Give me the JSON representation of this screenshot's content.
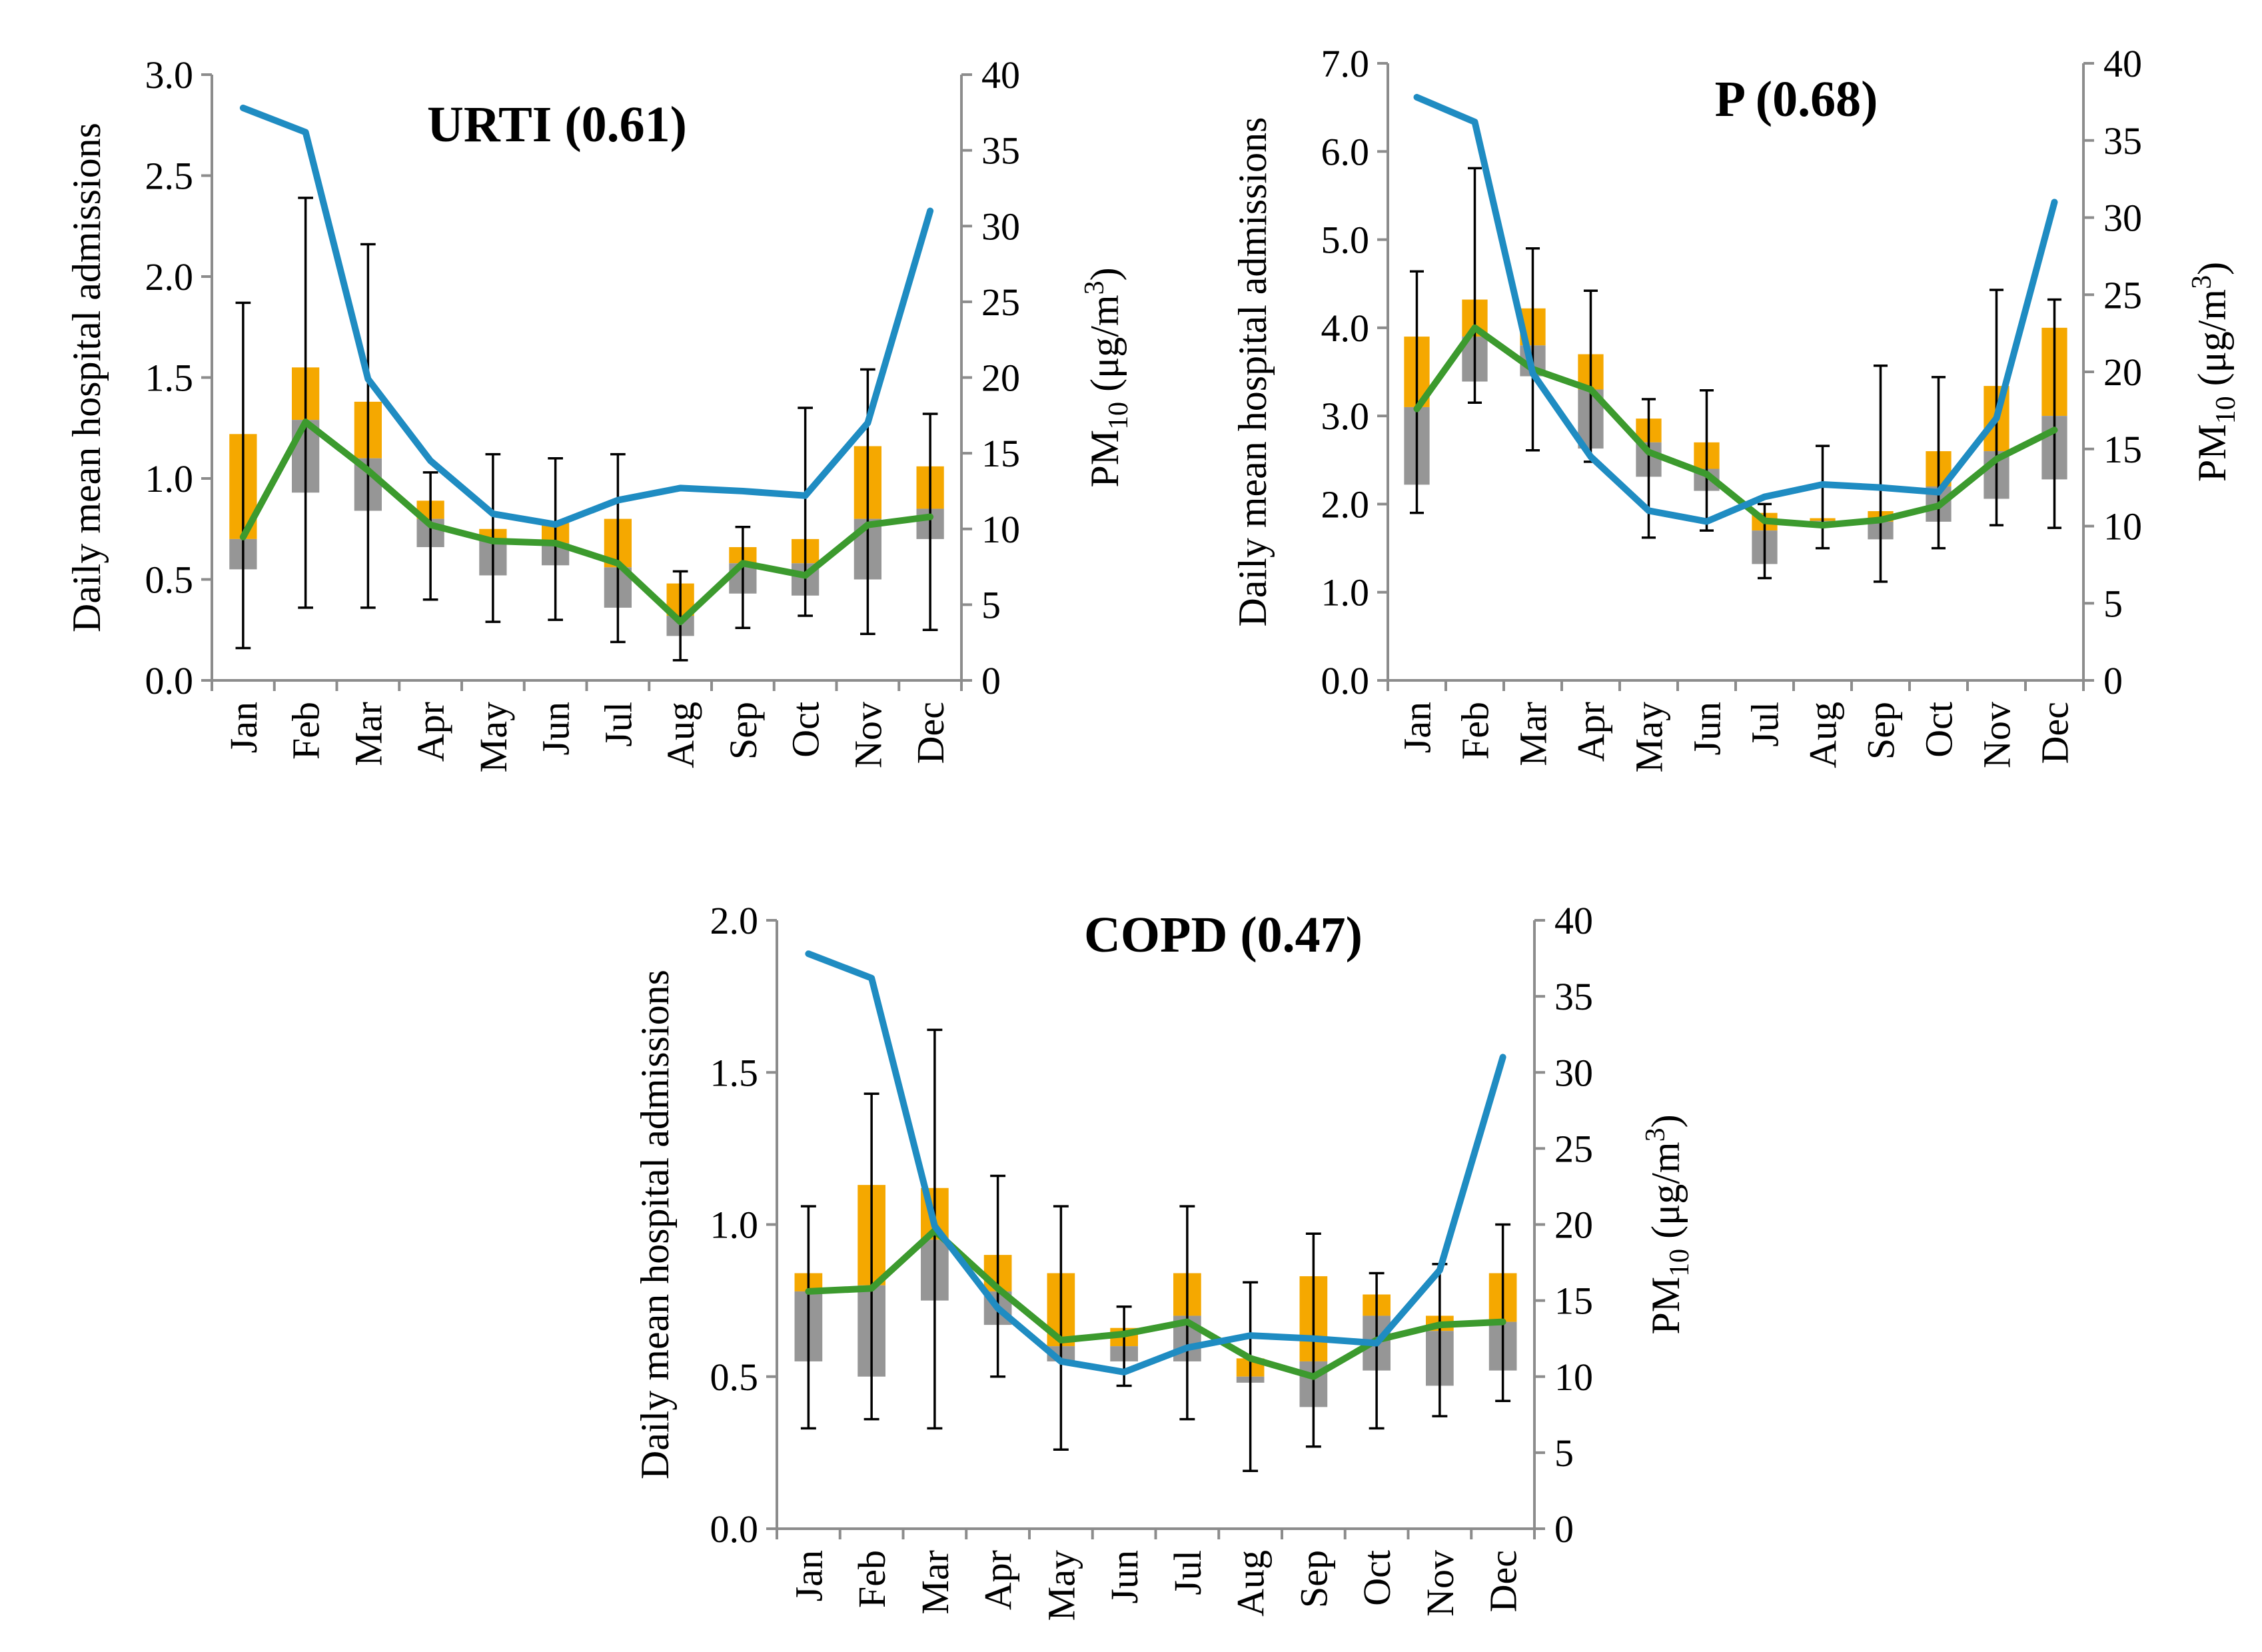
{
  "chart_data": [
    {
      "type": "bar",
      "title": "URTI (0.61)",
      "categories": [
        "Jan",
        "Feb",
        "Mar",
        "Apr",
        "May",
        "Jun",
        "Jul",
        "Aug",
        "Sep",
        "Oct",
        "Nov",
        "Dec"
      ],
      "ylabel": "Daily mean hospital admissions",
      "y2label": "PM",
      "y2label_sub": "10",
      "y2label_unit": " (μg/m",
      "y2label_sup": "3",
      "y2label_end": ")",
      "ylim": [
        0,
        3.0
      ],
      "yticks": [
        "0.0",
        "0.5",
        "1.0",
        "1.5",
        "2.0",
        "2.5",
        "3.0"
      ],
      "ytick_values": [
        0,
        0.5,
        1.0,
        1.5,
        2.0,
        2.5,
        3.0
      ],
      "y2lim": [
        0,
        40
      ],
      "y2ticks": [
        "0",
        "5",
        "10",
        "15",
        "20",
        "25",
        "30",
        "35",
        "40"
      ],
      "y2tick_values": [
        0,
        5,
        10,
        15,
        20,
        25,
        30,
        35,
        40
      ],
      "box_low": [
        0.55,
        0.93,
        0.84,
        0.66,
        0.52,
        0.57,
        0.36,
        0.22,
        0.43,
        0.42,
        0.5,
        0.7
      ],
      "box_mid": [
        0.7,
        1.29,
        1.1,
        0.8,
        0.7,
        0.68,
        0.56,
        0.32,
        0.58,
        0.58,
        0.8,
        0.85
      ],
      "box_high": [
        1.22,
        1.55,
        1.38,
        0.89,
        0.75,
        0.78,
        0.8,
        0.48,
        0.66,
        0.7,
        1.16,
        1.06
      ],
      "whisker_low": [
        0.16,
        0.36,
        0.36,
        0.4,
        0.29,
        0.3,
        0.19,
        0.1,
        0.26,
        0.32,
        0.23,
        0.25
      ],
      "whisker_high": [
        1.87,
        2.39,
        2.16,
        1.03,
        1.12,
        1.1,
        1.12,
        0.54,
        0.76,
        1.35,
        1.54,
        1.32
      ],
      "green_mean": [
        0.71,
        1.28,
        1.04,
        0.77,
        0.69,
        0.68,
        0.58,
        0.29,
        0.58,
        0.52,
        0.77,
        0.81
      ],
      "pm10": [
        37.8,
        36.2,
        19.9,
        14.5,
        11.0,
        10.3,
        11.9,
        12.7,
        12.5,
        12.2,
        17.0,
        31.0
      ],
      "colors": {
        "box_high": "#F5A800",
        "box_low": "#969696",
        "mean": "#3C9A2E",
        "pm10": "#1F8CC2",
        "axis": "#8C8C8C"
      }
    },
    {
      "type": "bar",
      "title": "P (0.68)",
      "categories": [
        "Jan",
        "Feb",
        "Mar",
        "Apr",
        "May",
        "Jun",
        "Jul",
        "Aug",
        "Sep",
        "Oct",
        "Nov",
        "Dec"
      ],
      "ylabel": "Daily mean hospital admissions",
      "y2label": "PM",
      "y2label_sub": "10",
      "y2label_unit": " (μg/m",
      "y2label_sup": "3",
      "y2label_end": ")",
      "ylim": [
        0,
        7.0
      ],
      "yticks": [
        "0.0",
        "1.0",
        "2.0",
        "3.0",
        "4.0",
        "5.0",
        "6.0",
        "7.0"
      ],
      "ytick_values": [
        0,
        1,
        2,
        3,
        4,
        5,
        6,
        7
      ],
      "y2lim": [
        0,
        40
      ],
      "y2ticks": [
        "0",
        "5",
        "10",
        "15",
        "20",
        "25",
        "30",
        "35",
        "40"
      ],
      "y2tick_values": [
        0,
        5,
        10,
        15,
        20,
        25,
        30,
        35,
        40
      ],
      "box_low": [
        2.22,
        3.39,
        3.45,
        2.63,
        2.31,
        2.15,
        1.32,
        1.8,
        1.6,
        1.8,
        2.06,
        2.28
      ],
      "box_mid": [
        3.1,
        3.9,
        3.8,
        3.3,
        2.7,
        2.4,
        1.7,
        1.81,
        1.8,
        2.2,
        2.6,
        3.0
      ],
      "box_high": [
        3.9,
        4.32,
        4.22,
        3.7,
        2.97,
        2.7,
        1.9,
        1.84,
        1.92,
        2.6,
        3.34,
        4.0
      ],
      "whisker_low": [
        1.9,
        3.15,
        2.61,
        2.48,
        1.62,
        1.7,
        1.16,
        1.5,
        1.12,
        1.5,
        1.76,
        1.73
      ],
      "whisker_high": [
        4.64,
        5.81,
        4.9,
        4.42,
        3.19,
        3.29,
        2.0,
        2.66,
        3.57,
        3.44,
        4.43,
        4.32
      ],
      "green_mean": [
        3.08,
        4.0,
        3.53,
        3.3,
        2.59,
        2.34,
        1.81,
        1.76,
        1.82,
        1.98,
        2.51,
        2.84
      ],
      "pm10": [
        37.8,
        36.2,
        19.9,
        14.5,
        11.0,
        10.3,
        11.9,
        12.7,
        12.5,
        12.2,
        17.0,
        31.0
      ],
      "colors": {
        "box_high": "#F5A800",
        "box_low": "#969696",
        "mean": "#3C9A2E",
        "pm10": "#1F8CC2",
        "axis": "#8C8C8C"
      }
    },
    {
      "type": "bar",
      "title": "COPD (0.47)",
      "categories": [
        "Jan",
        "Feb",
        "Mar",
        "Apr",
        "May",
        "Jun",
        "Jul",
        "Aug",
        "Sep",
        "Oct",
        "Nov",
        "Dec"
      ],
      "ylabel": "Daily mean hospital admissions",
      "y2label": "PM",
      "y2label_sub": "10",
      "y2label_unit": " (μg/m",
      "y2label_sup": "3",
      "y2label_end": ")",
      "ylim": [
        0,
        2.0
      ],
      "yticks": [
        "0.0",
        "0.5",
        "1.0",
        "1.5",
        "2.0"
      ],
      "ytick_values": [
        0,
        0.5,
        1.0,
        1.5,
        2.0
      ],
      "y2lim": [
        0,
        40
      ],
      "y2ticks": [
        "0",
        "5",
        "10",
        "15",
        "20",
        "25",
        "30",
        "35",
        "40"
      ],
      "y2tick_values": [
        0,
        5,
        10,
        15,
        20,
        25,
        30,
        35,
        40
      ],
      "box_low": [
        0.55,
        0.5,
        0.75,
        0.67,
        0.55,
        0.55,
        0.55,
        0.48,
        0.4,
        0.52,
        0.47,
        0.52
      ],
      "box_mid": [
        0.78,
        0.8,
        0.95,
        0.78,
        0.6,
        0.6,
        0.7,
        0.5,
        0.55,
        0.7,
        0.65,
        0.68
      ],
      "box_high": [
        0.84,
        1.13,
        1.12,
        0.9,
        0.84,
        0.66,
        0.84,
        0.56,
        0.83,
        0.77,
        0.7,
        0.84
      ],
      "whisker_low": [
        0.33,
        0.36,
        0.33,
        0.5,
        0.26,
        0.47,
        0.36,
        0.19,
        0.27,
        0.33,
        0.37,
        0.42
      ],
      "whisker_high": [
        1.06,
        1.43,
        1.64,
        1.16,
        1.06,
        0.73,
        1.06,
        0.81,
        0.97,
        0.84,
        0.87,
        1.0
      ],
      "green_mean": [
        0.78,
        0.79,
        0.98,
        0.79,
        0.62,
        0.64,
        0.68,
        0.56,
        0.5,
        0.62,
        0.67,
        0.68
      ],
      "pm10": [
        37.8,
        36.2,
        19.9,
        14.5,
        11.0,
        10.3,
        11.9,
        12.7,
        12.5,
        12.2,
        17.0,
        31.0
      ],
      "colors": {
        "box_high": "#F5A800",
        "box_low": "#969696",
        "mean": "#3C9A2E",
        "pm10": "#1F8CC2",
        "axis": "#8C8C8C"
      }
    }
  ]
}
